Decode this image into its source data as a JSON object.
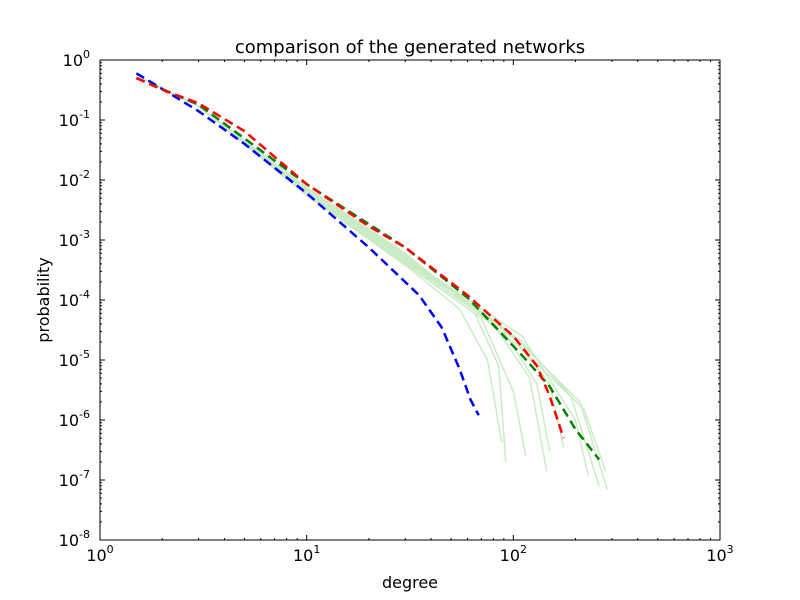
{
  "chart_data": {
    "type": "line",
    "title": "comparison of the generated networks",
    "xlabel": "degree",
    "ylabel": "probability",
    "x_scale": "log",
    "y_scale": "log",
    "xlim": [
      1,
      1000
    ],
    "ylim": [
      1e-08,
      1
    ],
    "x_ticks": [
      {
        "value": 1,
        "base": "10",
        "exp": "0"
      },
      {
        "value": 10,
        "base": "10",
        "exp": "1"
      },
      {
        "value": 100,
        "base": "10",
        "exp": "2"
      },
      {
        "value": 1000,
        "base": "10",
        "exp": "3"
      }
    ],
    "y_ticks": [
      {
        "value": 1,
        "base": "10",
        "exp": "0"
      },
      {
        "value": 0.1,
        "base": "10",
        "exp": "-1"
      },
      {
        "value": 0.01,
        "base": "10",
        "exp": "-2"
      },
      {
        "value": 0.001,
        "base": "10",
        "exp": "-3"
      },
      {
        "value": 0.0001,
        "base": "10",
        "exp": "-4"
      },
      {
        "value": 1e-05,
        "base": "10",
        "exp": "-5"
      },
      {
        "value": 1e-06,
        "base": "10",
        "exp": "-6"
      },
      {
        "value": 1e-07,
        "base": "10",
        "exp": "-7"
      },
      {
        "value": 1e-08,
        "base": "10",
        "exp": "-8"
      }
    ],
    "grid": false,
    "legend": "none",
    "series": [
      {
        "color": "#c9ebc5",
        "style": "solid",
        "points": [
          [
            1.5,
            0.55
          ],
          [
            3,
            0.17
          ],
          [
            10,
            0.0055
          ],
          [
            30,
            0.00038
          ],
          [
            55,
            7e-05
          ],
          [
            75,
            1e-05
          ],
          [
            88,
            4.2e-07
          ]
        ]
      },
      {
        "color": "#c9ebc5",
        "style": "solid",
        "points": [
          [
            1.5,
            0.55
          ],
          [
            3,
            0.17
          ],
          [
            10,
            0.0058
          ],
          [
            30,
            0.0004
          ],
          [
            65,
            6e-05
          ],
          [
            85,
            8e-06
          ],
          [
            92,
            2e-07
          ]
        ]
      },
      {
        "color": "#c9ebc5",
        "style": "solid",
        "points": [
          [
            1.5,
            0.55
          ],
          [
            3,
            0.17
          ],
          [
            10,
            0.006
          ],
          [
            30,
            0.00042
          ],
          [
            70,
            5e-05
          ],
          [
            100,
            3e-06
          ],
          [
            115,
            2.5e-07
          ]
        ]
      },
      {
        "color": "#c9ebc5",
        "style": "solid",
        "points": [
          [
            1.5,
            0.55
          ],
          [
            3,
            0.17
          ],
          [
            10,
            0.0062
          ],
          [
            30,
            0.00045
          ],
          [
            80,
            4e-05
          ],
          [
            120,
            5e-06
          ],
          [
            145,
            1.4e-07
          ]
        ]
      },
      {
        "color": "#c9ebc5",
        "style": "solid",
        "points": [
          [
            1.5,
            0.55
          ],
          [
            3,
            0.17
          ],
          [
            10,
            0.0064
          ],
          [
            30,
            0.00047
          ],
          [
            85,
            4e-05
          ],
          [
            130,
            4e-06
          ],
          [
            150,
            3e-07
          ]
        ]
      },
      {
        "color": "#c9ebc5",
        "style": "solid",
        "points": [
          [
            1.5,
            0.55
          ],
          [
            3,
            0.17
          ],
          [
            10,
            0.0066
          ],
          [
            30,
            0.0005
          ],
          [
            95,
            3e-05
          ],
          [
            150,
            4e-06
          ],
          [
            175,
            3.5e-07
          ]
        ]
      },
      {
        "color": "#c9ebc5",
        "style": "solid",
        "points": [
          [
            1.5,
            0.55
          ],
          [
            3,
            0.17
          ],
          [
            10,
            0.0068
          ],
          [
            30,
            0.00052
          ],
          [
            110,
            2.5e-05
          ],
          [
            200,
            1e-06
          ],
          [
            230,
            1.2e-07
          ]
        ]
      },
      {
        "color": "#c9ebc5",
        "style": "solid",
        "points": [
          [
            1.5,
            0.55
          ],
          [
            3,
            0.17
          ],
          [
            10,
            0.007
          ],
          [
            30,
            0.00055
          ],
          [
            110,
            2e-05
          ],
          [
            190,
            2.5e-06
          ],
          [
            260,
            8e-08
          ]
        ]
      },
      {
        "color": "#c9ebc5",
        "style": "solid",
        "points": [
          [
            1.5,
            0.55
          ],
          [
            3,
            0.17
          ],
          [
            10,
            0.0072
          ],
          [
            30,
            0.00058
          ],
          [
            110,
            1.8e-05
          ],
          [
            210,
            2e-06
          ],
          [
            285,
            7e-08
          ]
        ]
      },
      {
        "color": "#c9ebc5",
        "style": "solid",
        "points": [
          [
            1.5,
            0.55
          ],
          [
            3,
            0.17
          ],
          [
            10,
            0.0075
          ],
          [
            30,
            0.0006
          ],
          [
            110,
            1.5e-05
          ],
          [
            220,
            1.5e-06
          ],
          [
            280,
            1.4e-07
          ]
        ]
      },
      {
        "color": "#0000ff",
        "style": "dashed",
        "points": [
          [
            1.5,
            0.6
          ],
          [
            2,
            0.33
          ],
          [
            3,
            0.14
          ],
          [
            5,
            0.04
          ],
          [
            10,
            0.006
          ],
          [
            20,
            0.00075
          ],
          [
            35,
            0.00012
          ],
          [
            45,
            3.5e-05
          ],
          [
            55,
            7e-06
          ],
          [
            62,
            2.2e-06
          ],
          [
            68,
            1.2e-06
          ]
        ]
      },
      {
        "color": "#008000",
        "style": "dashed",
        "points": [
          [
            1.5,
            0.5
          ],
          [
            3,
            0.18
          ],
          [
            10,
            0.0085
          ],
          [
            30,
            0.00075
          ],
          [
            60,
            0.00011
          ],
          [
            110,
            1.2e-05
          ],
          [
            150,
            3.6e-06
          ],
          [
            200,
            7e-07
          ],
          [
            260,
            2.2e-07
          ]
        ]
      },
      {
        "color": "#ff0000",
        "style": "dashed",
        "points": [
          [
            1.5,
            0.5
          ],
          [
            2,
            0.32
          ],
          [
            3,
            0.19
          ],
          [
            5,
            0.065
          ],
          [
            10,
            0.0085
          ],
          [
            20,
            0.0017
          ],
          [
            30,
            0.00075
          ],
          [
            60,
            0.00012
          ],
          [
            100,
            2.5e-05
          ],
          [
            130,
            8e-06
          ],
          [
            150,
            2.5e-06
          ],
          [
            175,
            5e-07
          ]
        ]
      }
    ]
  }
}
